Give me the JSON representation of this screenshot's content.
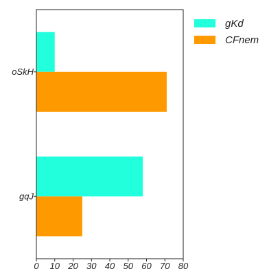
{
  "chart_data": {
    "type": "bar",
    "orientation": "horizontal",
    "categories": [
      "oSkH",
      "gqJ"
    ],
    "series": [
      {
        "name": "gKd",
        "values": [
          10,
          58
        ],
        "color": "#22ffdd"
      },
      {
        "name": "CFnem",
        "values": [
          71,
          25
        ],
        "color": "#ff9900"
      }
    ],
    "xlim": [
      0,
      80
    ],
    "xticks": [
      0,
      10,
      20,
      30,
      40,
      50,
      60,
      70,
      80
    ],
    "title": "",
    "xlabel": "",
    "ylabel": "",
    "grid": false,
    "legend_position": "top-right"
  }
}
